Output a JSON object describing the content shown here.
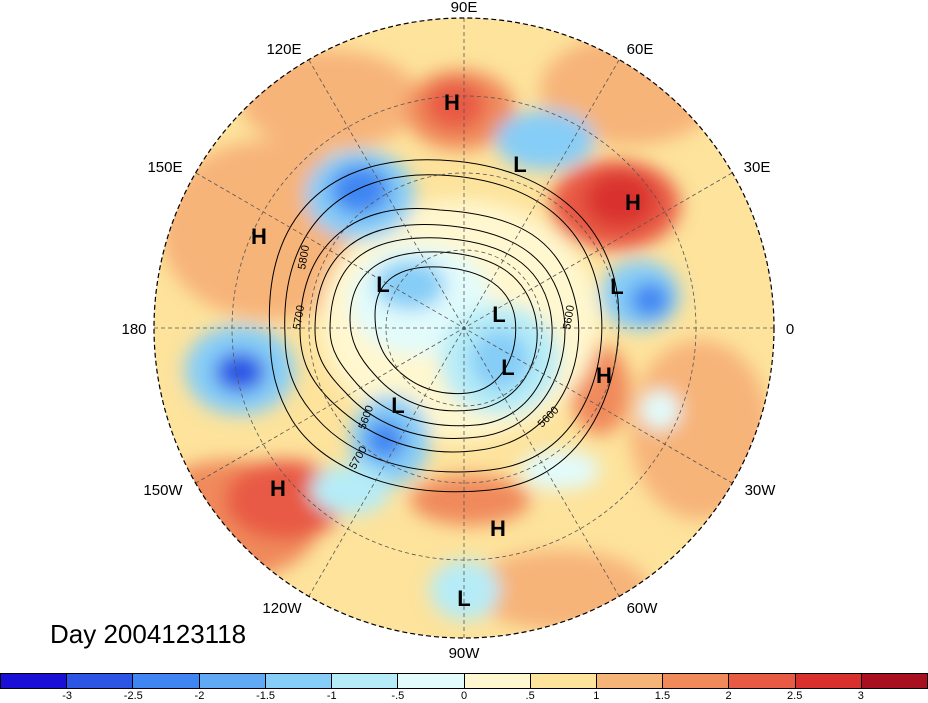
{
  "caption": "Day 2004123118",
  "longitude_labels": {
    "e90": "90E",
    "e60": "60E",
    "e30": "30E",
    "zero": "0",
    "w30": "30W",
    "w60": "60W",
    "w90": "90W",
    "w120": "120W",
    "w150": "150W",
    "lon180": "180",
    "e150": "150E",
    "e120": "120E"
  },
  "pressure_centers": [
    {
      "label": "H",
      "kind": "high"
    },
    {
      "label": "L",
      "kind": "low"
    },
    {
      "label": "H",
      "kind": "high"
    },
    {
      "label": "H",
      "kind": "high"
    },
    {
      "label": "L",
      "kind": "low"
    },
    {
      "label": "L",
      "kind": "low"
    },
    {
      "label": "L",
      "kind": "low"
    },
    {
      "label": "L",
      "kind": "low"
    },
    {
      "label": "H",
      "kind": "high"
    },
    {
      "label": "L",
      "kind": "low"
    },
    {
      "label": "H",
      "kind": "high"
    },
    {
      "label": "H",
      "kind": "high"
    },
    {
      "label": "L",
      "kind": "low"
    }
  ],
  "contour_labels": [
    "5800",
    "5700",
    "5600",
    "5700",
    "5600",
    "5600"
  ],
  "colorbar": {
    "colors": [
      "#1a0fd6",
      "#2c55e6",
      "#3f86f2",
      "#5fa9f5",
      "#86cdf7",
      "#b6ecf7",
      "#e2fbfb",
      "#fff7cf",
      "#fde39c",
      "#f7b479",
      "#f08a5b",
      "#e85a44",
      "#d9302e",
      "#a8101f"
    ],
    "ticks": [
      "-3",
      "-2.5",
      "-2",
      "-1.5",
      "-1",
      "-.5",
      "0",
      ".5",
      "1",
      "1.5",
      "2",
      "2.5",
      "3"
    ]
  }
}
